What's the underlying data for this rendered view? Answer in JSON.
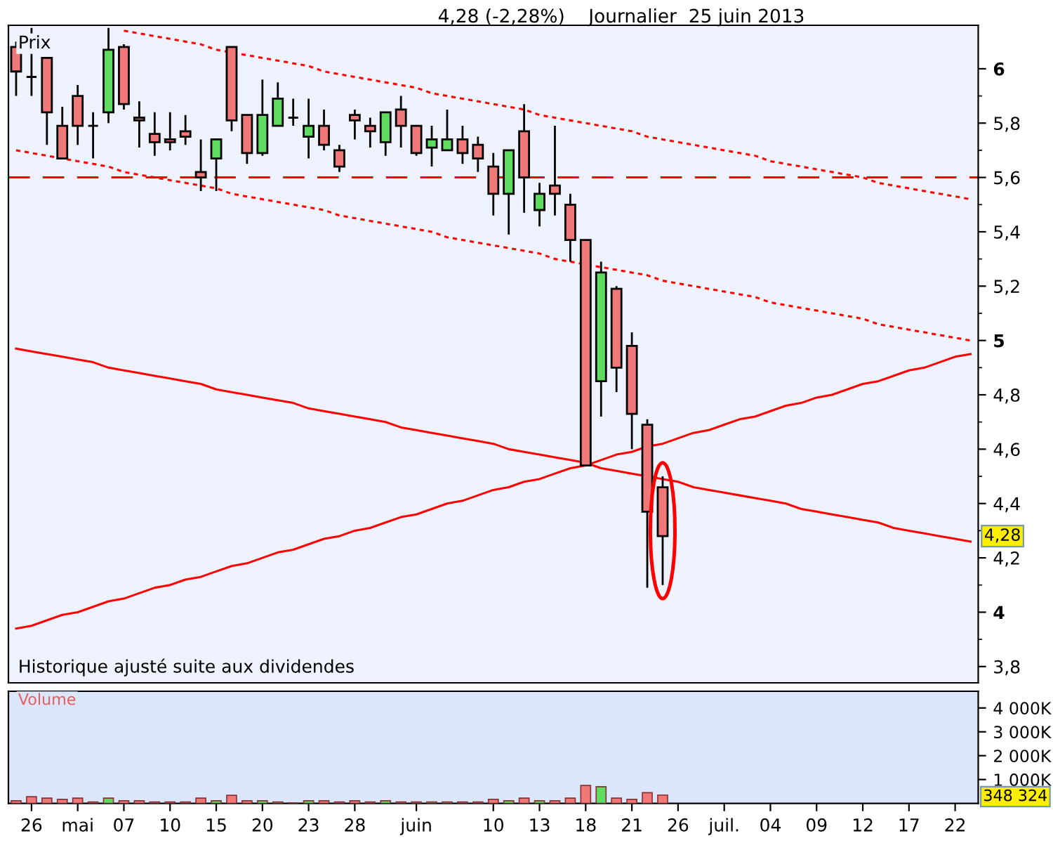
{
  "chart_data": [
    {
      "type": "candlestick",
      "title": "4,28 (-2,28%)    Journalier  25 juin 2013",
      "categories": [
        null,
        null,
        null,
        null,
        null,
        null,
        null,
        null,
        null,
        null,
        null,
        null,
        null,
        null,
        null,
        null,
        null,
        null,
        null,
        null,
        null,
        null,
        null,
        null,
        null,
        null,
        null,
        null,
        null,
        null,
        null,
        null,
        null,
        null,
        null,
        null,
        null,
        null,
        null,
        null,
        null,
        null,
        null,
        null,
        null,
        null,
        null,
        null,
        null,
        null,
        null,
        null,
        null,
        null,
        null,
        null,
        null,
        null,
        null,
        null,
        null,
        null,
        null
      ],
      "ohlc": [
        [
          6.08,
          6.1,
          5.9,
          5.99
        ],
        [
          5.97,
          6.15,
          5.9,
          5.97
        ],
        [
          6.04,
          6.04,
          5.72,
          5.84
        ],
        [
          5.79,
          5.86,
          5.67,
          5.67
        ],
        [
          5.9,
          5.94,
          5.72,
          5.79
        ],
        [
          5.79,
          5.84,
          5.67,
          5.79
        ],
        [
          5.84,
          6.15,
          5.8,
          6.07
        ],
        [
          6.08,
          6.09,
          5.85,
          5.87
        ],
        [
          5.82,
          5.88,
          5.71,
          5.81
        ],
        [
          5.76,
          5.84,
          5.68,
          5.73
        ],
        [
          5.74,
          5.84,
          5.7,
          5.73
        ],
        [
          5.77,
          5.83,
          5.72,
          5.75
        ],
        [
          5.62,
          5.74,
          5.55,
          5.6
        ],
        [
          5.67,
          5.74,
          5.55,
          5.74
        ],
        [
          6.08,
          6.08,
          5.77,
          5.81
        ],
        [
          5.83,
          5.83,
          5.65,
          5.69
        ],
        [
          5.69,
          5.96,
          5.68,
          5.83
        ],
        [
          5.79,
          5.95,
          5.79,
          5.89
        ],
        [
          5.82,
          5.89,
          5.79,
          5.82
        ],
        [
          5.75,
          5.89,
          5.67,
          5.79
        ],
        [
          5.79,
          5.85,
          5.7,
          5.72
        ],
        [
          5.7,
          5.72,
          5.62,
          5.64
        ],
        [
          5.83,
          5.85,
          5.74,
          5.81
        ],
        [
          5.79,
          5.82,
          5.71,
          5.77
        ],
        [
          5.73,
          5.84,
          5.68,
          5.84
        ],
        [
          5.85,
          5.9,
          5.71,
          5.79
        ],
        [
          5.79,
          5.79,
          5.68,
          5.69
        ],
        [
          5.71,
          5.79,
          5.64,
          5.74
        ],
        [
          5.7,
          5.85,
          5.7,
          5.74
        ],
        [
          5.74,
          5.79,
          5.65,
          5.69
        ],
        [
          5.72,
          5.75,
          5.62,
          5.67
        ],
        [
          5.64,
          5.69,
          5.46,
          5.54
        ],
        [
          5.54,
          5.7,
          5.39,
          5.7
        ],
        [
          5.77,
          5.87,
          5.47,
          5.6
        ],
        [
          5.48,
          5.58,
          5.42,
          5.54
        ],
        [
          5.57,
          5.79,
          5.46,
          5.54
        ],
        [
          5.5,
          5.54,
          5.29,
          5.37
        ],
        [
          5.37,
          5.37,
          4.54,
          4.54
        ],
        [
          4.85,
          5.29,
          4.72,
          5.25
        ],
        [
          5.19,
          5.2,
          4.81,
          4.9
        ],
        [
          4.98,
          5.03,
          4.6,
          4.73
        ],
        [
          4.69,
          4.71,
          4.09,
          4.37
        ],
        [
          4.46,
          4.5,
          4.1,
          4.28
        ],
        null,
        null,
        null,
        null,
        null,
        null,
        null,
        null,
        null,
        null,
        null,
        null,
        null,
        null,
        null,
        null,
        null,
        null,
        null,
        null
      ],
      "colors": [
        "#f07878",
        "#000000",
        "#f07878",
        "#f07878",
        "#f07878",
        "#000000",
        "#5fdc5f",
        "#f07878",
        "#f07878",
        "#f07878",
        "#f07878",
        "#f07878",
        "#f07878",
        "#5fdc5f",
        "#f07878",
        "#f07878",
        "#5fdc5f",
        "#5fdc5f",
        "#000000",
        "#5fdc5f",
        "#f07878",
        "#f07878",
        "#f07878",
        "#f07878",
        "#5fdc5f",
        "#f07878",
        "#f07878",
        "#5fdc5f",
        "#5fdc5f",
        "#f07878",
        "#f07878",
        "#f07878",
        "#5fdc5f",
        "#f07878",
        "#5fdc5f",
        "#f07878",
        "#f07878",
        "#f07878",
        "#5fdc5f",
        "#f07878",
        "#f07878",
        "#f07878",
        "#f07878",
        null,
        null,
        null,
        null,
        null,
        null,
        null,
        null,
        null,
        null,
        null,
        null,
        null,
        null,
        null,
        null,
        null,
        null,
        null,
        null
      ],
      "series": [
        {
          "type": "line",
          "color": "#ff0000",
          "line_style": "dotted",
          "values": [
            null,
            null,
            null,
            null,
            null,
            null,
            null,
            6.14,
            6.13,
            6.12,
            6.11,
            6.1,
            6.09,
            6.07,
            6.06,
            6.05,
            6.04,
            6.03,
            6.02,
            6.01,
            5.99,
            5.98,
            5.97,
            5.96,
            5.95,
            5.94,
            5.93,
            5.91,
            5.9,
            5.89,
            5.88,
            5.87,
            5.86,
            5.85,
            5.83,
            5.82,
            5.81,
            5.8,
            5.79,
            5.78,
            5.77,
            5.75,
            5.74,
            5.73,
            5.72,
            5.71,
            5.7,
            5.69,
            5.68,
            5.66,
            5.65,
            5.64,
            5.63,
            5.62,
            5.61,
            5.6,
            5.58,
            5.57,
            5.56,
            5.55,
            5.54,
            5.53,
            5.52
          ]
        },
        {
          "type": "line",
          "color": "#ff0000",
          "line_style": "dotted",
          "values": [
            5.7,
            5.69,
            5.68,
            5.67,
            5.66,
            5.65,
            5.64,
            5.62,
            5.61,
            5.6,
            5.59,
            5.58,
            5.57,
            5.56,
            5.54,
            5.53,
            5.52,
            5.51,
            5.5,
            5.49,
            5.48,
            5.46,
            5.45,
            5.44,
            5.43,
            5.42,
            5.41,
            5.4,
            5.38,
            5.37,
            5.36,
            5.35,
            5.34,
            5.33,
            5.32,
            5.3,
            5.29,
            5.28,
            5.27,
            5.26,
            5.25,
            5.24,
            5.22,
            5.21,
            5.2,
            5.19,
            5.18,
            5.17,
            5.16,
            5.14,
            5.13,
            5.12,
            5.11,
            5.1,
            5.09,
            5.08,
            5.06,
            5.05,
            5.04,
            5.03,
            5.02,
            5.01,
            5.0
          ]
        },
        {
          "type": "line",
          "color": "#ff0000",
          "line_style": "solid",
          "values": [
            4.97,
            4.96,
            4.95,
            4.94,
            4.93,
            4.92,
            4.9,
            4.89,
            4.88,
            4.87,
            4.86,
            4.85,
            4.84,
            4.82,
            4.81,
            4.8,
            4.79,
            4.78,
            4.77,
            4.75,
            4.74,
            4.73,
            4.72,
            4.71,
            4.7,
            4.68,
            4.67,
            4.66,
            4.65,
            4.64,
            4.63,
            4.62,
            4.6,
            4.59,
            4.58,
            4.57,
            4.56,
            4.55,
            4.53,
            4.52,
            4.51,
            4.5,
            4.49,
            4.48,
            4.46,
            4.45,
            4.44,
            4.43,
            4.42,
            4.41,
            4.4,
            4.38,
            4.37,
            4.36,
            4.35,
            4.34,
            4.33,
            4.31,
            4.3,
            4.29,
            4.28,
            4.27,
            4.26
          ]
        },
        {
          "type": "line",
          "color": "#ff0000",
          "line_style": "solid",
          "values": [
            3.94,
            3.95,
            3.97,
            3.99,
            4.0,
            4.02,
            4.04,
            4.05,
            4.07,
            4.09,
            4.1,
            4.12,
            4.13,
            4.15,
            4.17,
            4.18,
            4.2,
            4.22,
            4.23,
            4.25,
            4.27,
            4.28,
            4.3,
            4.31,
            4.33,
            4.35,
            4.36,
            4.38,
            4.4,
            4.41,
            4.43,
            4.45,
            4.46,
            4.48,
            4.49,
            4.51,
            4.53,
            4.54,
            4.56,
            4.58,
            4.59,
            4.61,
            4.62,
            4.64,
            4.66,
            4.67,
            4.69,
            4.71,
            4.72,
            4.74,
            4.76,
            4.77,
            4.79,
            4.8,
            4.82,
            4.84,
            4.85,
            4.87,
            4.89,
            4.9,
            4.92,
            4.94,
            4.95
          ]
        }
      ],
      "ref_lines": [
        {
          "axis": "y",
          "value": 5.6,
          "color": "#ff0000",
          "line_style": "dashed"
        }
      ],
      "ylim": [
        3.74,
        6.16
      ],
      "yticks": [
        {
          "value": 3.8,
          "label": "3,8"
        },
        4,
        {
          "value": 4.2,
          "label": "4,2"
        },
        {
          "value": 4.4,
          "label": "4,4"
        },
        {
          "value": 4.6,
          "label": "4,6"
        },
        {
          "value": 4.8,
          "label": "4,8"
        },
        5,
        {
          "value": 5.2,
          "label": "5,2"
        },
        {
          "value": 5.4,
          "label": "5,4"
        },
        {
          "value": 5.6,
          "label": "5,6"
        },
        {
          "value": 5.8,
          "label": "5,8"
        },
        6
      ],
      "tick_labels": "y",
      "annotations": [
        "Prix",
        "Historique ajusté suite aux dividendes",
        {
          "text": "4,28",
          "y": 4.28
        }
      ]
    },
    {
      "type": "bar",
      "categories": [
        null,
        "26",
        null,
        null,
        "mai",
        null,
        null,
        "07",
        null,
        null,
        "10",
        null,
        null,
        "15",
        null,
        null,
        "20",
        null,
        null,
        "23",
        null,
        null,
        "28",
        null,
        null,
        null,
        "juin",
        null,
        null,
        null,
        null,
        "10",
        null,
        null,
        "13",
        null,
        null,
        "18",
        null,
        null,
        "21",
        null,
        null,
        "26",
        null,
        null,
        "juil.",
        null,
        null,
        "04",
        null,
        null,
        "09",
        null,
        null,
        "12",
        null,
        null,
        "17",
        null,
        null,
        "22",
        null
      ],
      "values": [
        110,
        280,
        220,
        170,
        220,
        60,
        220,
        110,
        110,
        60,
        60,
        60,
        220,
        110,
        340,
        110,
        110,
        60,
        20,
        110,
        110,
        60,
        110,
        60,
        110,
        60,
        60,
        60,
        60,
        60,
        60,
        170,
        110,
        220,
        110,
        110,
        220,
        750,
        700,
        220,
        170,
        450,
        350,
        null,
        null,
        null,
        null,
        null,
        null,
        null,
        null,
        null,
        null,
        null,
        null,
        null,
        null,
        null,
        null,
        null,
        null,
        null,
        null
      ],
      "colors": [
        "#f07878",
        "#f07878",
        "#f07878",
        "#f07878",
        "#f07878",
        "#f07878",
        "#5fdc5f",
        "#f07878",
        "#f07878",
        "#f07878",
        "#f07878",
        "#f07878",
        "#f07878",
        "#5fdc5f",
        "#f07878",
        "#f07878",
        "#5fdc5f",
        "#5fdc5f",
        "#f07878",
        "#5fdc5f",
        "#f07878",
        "#f07878",
        "#f07878",
        "#f07878",
        "#5fdc5f",
        "#f07878",
        "#f07878",
        "#5fdc5f",
        "#5fdc5f",
        "#f07878",
        "#f07878",
        "#f07878",
        "#5fdc5f",
        "#f07878",
        "#5fdc5f",
        "#f07878",
        "#f07878",
        "#f07878",
        "#5fdc5f",
        "#f07878",
        "#f07878",
        "#f07878",
        "#f07878",
        null,
        null,
        null,
        null,
        null,
        null,
        null,
        null,
        null,
        null,
        null,
        null,
        null,
        null,
        null,
        null,
        null,
        null,
        null,
        null
      ],
      "ylim": [
        0,
        4700
      ],
      "yticks": [
        {
          "value": 1000,
          "label": "1 000K"
        },
        {
          "value": 2000,
          "label": "2 000K"
        },
        {
          "value": 3000,
          "label": "3 000K"
        },
        {
          "value": 4000,
          "label": "4 000K"
        }
      ],
      "annotations": [
        "Volume",
        "348 324"
      ]
    }
  ]
}
